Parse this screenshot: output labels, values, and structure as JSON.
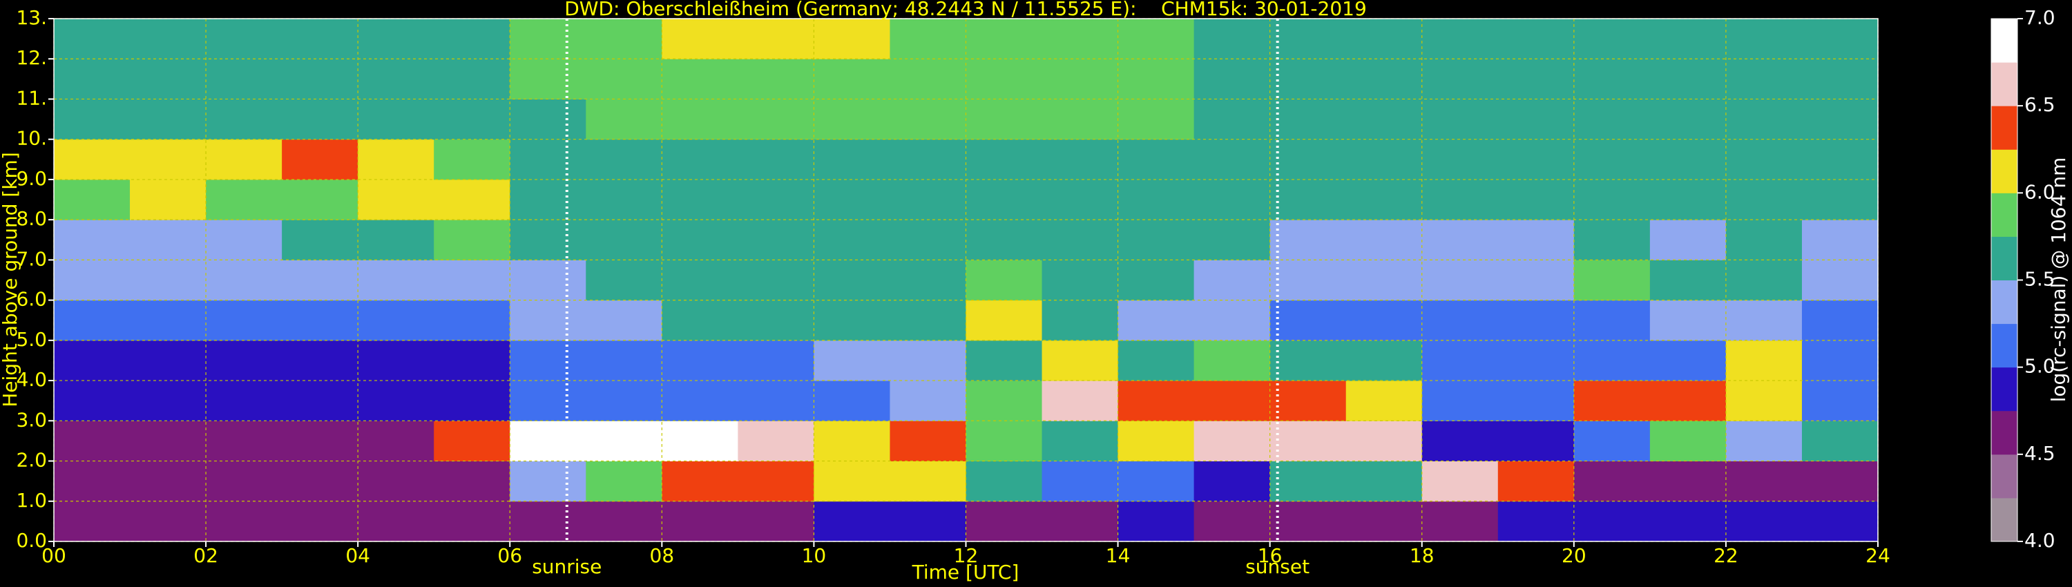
{
  "chart_data": {
    "type": "heatmap",
    "title": "DWD: Oberschleißheim (Germany; 48.2443 N / 11.5525 E):    CHM15k: 30-01-2019",
    "xlabel": "Time [UTC]",
    "ylabel": "Height above ground [km]",
    "colorbar_label": "log(rc-signal) @ 1064 nm",
    "xlim": [
      0,
      24
    ],
    "ylim": [
      0,
      13
    ],
    "xticks": [
      {
        "value": 0,
        "label": "00"
      },
      {
        "value": 2,
        "label": "02"
      },
      {
        "value": 4,
        "label": "04"
      },
      {
        "value": 6,
        "label": "06"
      },
      {
        "value": 8,
        "label": "08"
      },
      {
        "value": 10,
        "label": "10"
      },
      {
        "value": 12,
        "label": "12"
      },
      {
        "value": 14,
        "label": "14"
      },
      {
        "value": 16,
        "label": "16"
      },
      {
        "value": 18,
        "label": "18"
      },
      {
        "value": 20,
        "label": "20"
      },
      {
        "value": 22,
        "label": "22"
      },
      {
        "value": 24,
        "label": "24"
      }
    ],
    "yticks": [
      {
        "value": 0,
        "label": "0.0"
      },
      {
        "value": 1,
        "label": "1.0"
      },
      {
        "value": 2,
        "label": "2.0"
      },
      {
        "value": 3,
        "label": "3.0"
      },
      {
        "value": 4,
        "label": "4.0"
      },
      {
        "value": 5,
        "label": "5.0"
      },
      {
        "value": 6,
        "label": "6.0"
      },
      {
        "value": 7,
        "label": "7.0"
      },
      {
        "value": 8,
        "label": "8.0"
      },
      {
        "value": 9,
        "label": "9.0"
      },
      {
        "value": 10,
        "label": "10."
      },
      {
        "value": 11,
        "label": "11."
      },
      {
        "value": 12,
        "label": "12."
      },
      {
        "value": 13,
        "label": "13."
      }
    ],
    "grid": true,
    "grid_color": "#c8c800",
    "zlim": [
      4.0,
      7.0
    ],
    "zticks": [
      {
        "value": 4.0,
        "label": "4.0"
      },
      {
        "value": 4.5,
        "label": "4.5"
      },
      {
        "value": 5.0,
        "label": "5.0"
      },
      {
        "value": 5.5,
        "label": "5.5"
      },
      {
        "value": 6.0,
        "label": "6.0"
      },
      {
        "value": 6.5,
        "label": "6.5"
      },
      {
        "value": 7.0,
        "label": "7.0"
      }
    ],
    "colorscale": [
      "#a0909c",
      "#9a6a9a",
      "#7a1a7a",
      "#2a10c0",
      "#4070f0",
      "#90a8f0",
      "#30a890",
      "#60d060",
      "#f0e020",
      "#f04010",
      "#f0c8c8",
      "#ffffff"
    ],
    "xbins": [
      0,
      1,
      2,
      3,
      4,
      5,
      6,
      7,
      8,
      9,
      10,
      11,
      12,
      13,
      14,
      15,
      16,
      17,
      18,
      19,
      20,
      21,
      22,
      23,
      24
    ],
    "ybins": [
      0,
      1,
      2,
      3,
      4,
      5,
      6,
      7,
      8,
      9,
      10,
      11,
      12,
      13
    ],
    "z": [
      [
        4.6,
        4.6,
        4.6,
        4.6,
        4.6,
        4.6,
        4.6,
        4.6,
        4.6,
        4.6,
        4.8,
        4.9,
        4.7,
        4.7,
        4.8,
        4.7,
        4.7,
        4.7,
        4.7,
        4.8,
        4.9,
        4.9,
        4.9,
        4.8
      ],
      [
        4.6,
        4.6,
        4.6,
        4.6,
        4.6,
        4.7,
        5.3,
        5.8,
        6.3,
        6.4,
        6.0,
        6.0,
        5.5,
        5.0,
        5.2,
        4.8,
        5.6,
        5.5,
        6.5,
        6.3,
        4.7,
        4.7,
        4.7,
        4.7
      ],
      [
        4.7,
        4.7,
        4.7,
        4.7,
        4.7,
        6.3,
        6.8,
        6.8,
        6.8,
        6.6,
        6.2,
        6.3,
        5.8,
        5.6,
        6.1,
        6.6,
        6.5,
        6.5,
        4.8,
        4.8,
        5.2,
        5.8,
        5.4,
        5.6
      ],
      [
        4.8,
        4.8,
        4.8,
        4.8,
        4.8,
        4.9,
        5.0,
        5.0,
        5.0,
        5.0,
        5.2,
        5.3,
        5.8,
        6.6,
        6.4,
        6.4,
        6.4,
        6.0,
        5.0,
        5.0,
        6.4,
        6.4,
        6.0,
        5.0
      ],
      [
        4.9,
        4.9,
        4.9,
        4.9,
        4.9,
        4.9,
        5.1,
        5.2,
        5.2,
        5.2,
        5.3,
        5.4,
        5.6,
        6.2,
        5.6,
        5.8,
        5.6,
        5.5,
        5.0,
        5.0,
        5.0,
        5.2,
        6.0,
        5.0
      ],
      [
        5.1,
        5.1,
        5.1,
        5.1,
        5.1,
        5.1,
        5.3,
        5.4,
        5.5,
        5.5,
        5.5,
        5.6,
        6.0,
        5.7,
        5.4,
        5.3,
        5.2,
        5.2,
        5.2,
        5.2,
        5.2,
        5.3,
        5.3,
        5.2
      ],
      [
        5.3,
        5.3,
        5.3,
        5.3,
        5.3,
        5.3,
        5.4,
        5.5,
        5.5,
        5.6,
        5.6,
        5.7,
        5.8,
        5.6,
        5.5,
        5.4,
        5.3,
        5.3,
        5.3,
        5.3,
        5.9,
        5.6,
        5.6,
        5.3
      ],
      [
        5.4,
        5.4,
        5.4,
        5.5,
        5.5,
        5.8,
        5.5,
        5.6,
        5.6,
        5.6,
        5.6,
        5.6,
        5.6,
        5.6,
        5.5,
        5.5,
        5.4,
        5.4,
        5.4,
        5.4,
        5.5,
        5.4,
        5.5,
        5.4
      ],
      [
        5.8,
        6.0,
        5.9,
        5.8,
        6.0,
        6.1,
        5.6,
        5.6,
        5.7,
        5.7,
        5.7,
        5.6,
        5.6,
        5.6,
        5.6,
        5.6,
        5.5,
        5.5,
        5.5,
        5.5,
        5.5,
        5.5,
        5.5,
        5.5
      ],
      [
        6.1,
        6.2,
        6.2,
        6.3,
        6.2,
        5.8,
        5.6,
        5.7,
        5.7,
        5.7,
        5.7,
        5.6,
        5.6,
        5.6,
        5.6,
        5.6,
        5.5,
        5.5,
        5.5,
        5.5,
        5.5,
        5.5,
        5.5,
        5.5
      ],
      [
        5.6,
        5.6,
        5.6,
        5.6,
        5.6,
        5.6,
        5.7,
        5.8,
        5.8,
        5.9,
        5.9,
        5.9,
        5.8,
        5.8,
        5.8,
        5.7,
        5.6,
        5.6,
        5.6,
        5.6,
        5.6,
        5.6,
        5.6,
        5.6
      ],
      [
        5.6,
        5.6,
        5.6,
        5.6,
        5.6,
        5.6,
        5.8,
        5.8,
        5.9,
        5.9,
        5.9,
        5.9,
        5.9,
        5.8,
        5.8,
        5.7,
        5.6,
        5.6,
        5.6,
        5.6,
        5.6,
        5.6,
        5.6,
        5.6
      ],
      [
        5.6,
        5.6,
        5.6,
        5.6,
        5.6,
        5.7,
        5.8,
        5.9,
        6.0,
        6.0,
        6.0,
        5.9,
        5.9,
        5.9,
        5.9,
        5.7,
        5.6,
        5.6,
        5.6,
        5.6,
        5.6,
        5.6,
        5.6,
        5.6
      ]
    ],
    "annotations": [
      {
        "text": "sunrise",
        "x": 6.75
      },
      {
        "text": "sunset",
        "x": 16.1
      }
    ]
  }
}
